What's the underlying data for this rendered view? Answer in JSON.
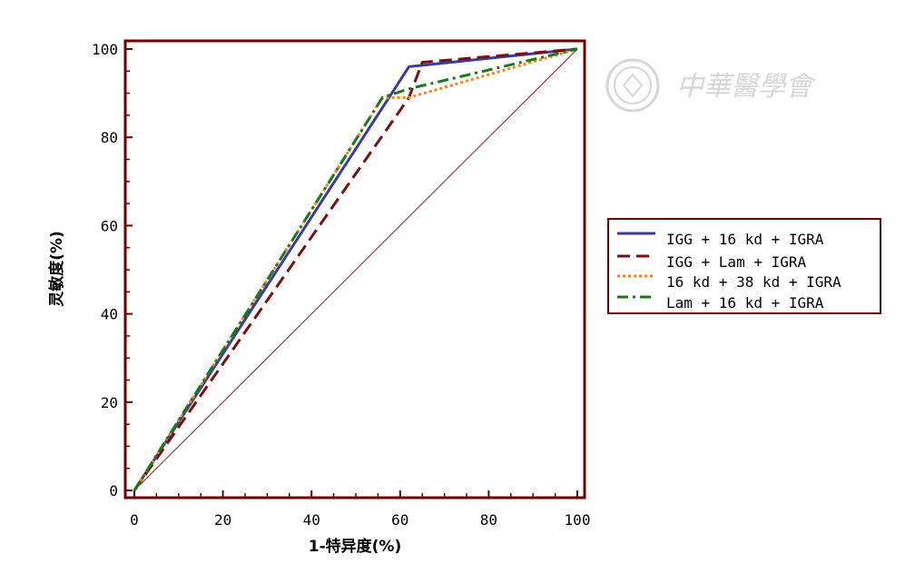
{
  "watermark": {
    "text": "中華醫學會"
  },
  "colors": {
    "frame": "#6e0000",
    "reference": "#8b1a1a",
    "watermark": "#d2d2d2"
  },
  "chart_data": {
    "type": "line",
    "title": "",
    "xlabel": "1-特异度(%)",
    "ylabel": "灵敏度(%)",
    "xlim": [
      0,
      100
    ],
    "ylim": [
      0,
      100
    ],
    "xticks": [
      "0",
      "20",
      "40",
      "60",
      "80",
      "100"
    ],
    "yticks": [
      "0",
      "20",
      "40",
      "60",
      "80",
      "100"
    ],
    "grid": false,
    "legend_position": "right",
    "reference_line": {
      "x": [
        0,
        100
      ],
      "y": [
        0,
        100
      ]
    },
    "series": [
      {
        "name": "IGG + 16 kd + IGRA",
        "color": "#3a3aa0",
        "dash": "solid",
        "x": [
          0,
          62,
          100
        ],
        "y": [
          0,
          96,
          100
        ]
      },
      {
        "name": "IGG + Lam + IGRA",
        "color": "#7a0f0f",
        "dash": "dashed",
        "x": [
          0,
          62,
          65,
          100
        ],
        "y": [
          0,
          89,
          97,
          100
        ]
      },
      {
        "name": "16 kd + 38 kd + IGRA",
        "color": "#ff7f1a",
        "dash": "dotted",
        "x": [
          0,
          56,
          62,
          100
        ],
        "y": [
          0,
          89,
          89,
          100
        ]
      },
      {
        "name": "Lam + 16 kd + IGRA",
        "color": "#1a7a1a",
        "dash": "dashdot",
        "x": [
          0,
          56,
          62,
          100
        ],
        "y": [
          0,
          89,
          91,
          100
        ]
      }
    ]
  }
}
